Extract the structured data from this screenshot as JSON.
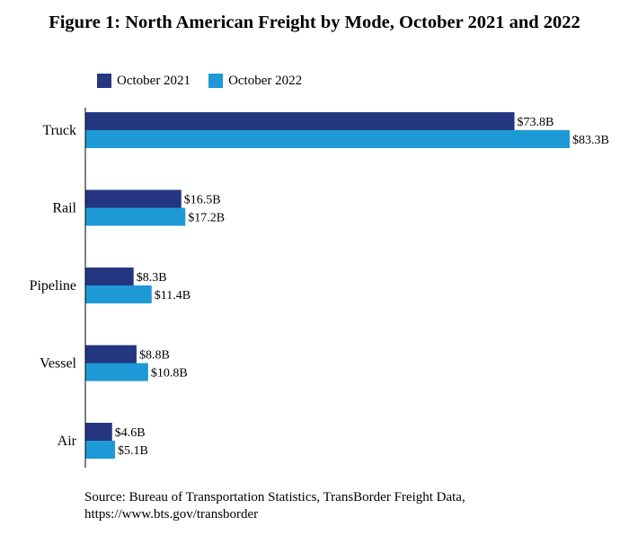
{
  "title": "Figure 1: North American Freight by Mode, October 2021 and 2022",
  "legend": {
    "item1": "October 2021",
    "item2": "October 2022"
  },
  "source": {
    "line1": "Source: Bureau of Transportation Statistics, TransBorder Freight Data,",
    "line2": "https://www.bts.gov/transborder"
  },
  "colors": {
    "series1": "#253681",
    "series2": "#1d9ad6"
  },
  "chart_data": {
    "type": "bar",
    "orientation": "horizontal",
    "title": "Figure 1: North American Freight by Mode, October 2021 and 2022",
    "categories": [
      "Truck",
      "Rail",
      "Pipeline",
      "Vessel",
      "Air"
    ],
    "series": [
      {
        "name": "October 2021",
        "values": [
          73.8,
          16.5,
          8.3,
          8.8,
          4.6
        ],
        "labels": [
          "$73.8B",
          "$16.5B",
          "$8.3B",
          "$8.8B",
          "$4.6B"
        ]
      },
      {
        "name": "October 2022",
        "values": [
          83.3,
          17.2,
          11.4,
          10.8,
          5.1
        ],
        "labels": [
          "$83.3B",
          "$17.2B",
          "$11.4B",
          "$10.8B",
          "$5.1B"
        ]
      }
    ],
    "units": "billions of US dollars",
    "xlim": [
      0,
      90
    ],
    "grid": false,
    "legend_position": "top-left"
  }
}
